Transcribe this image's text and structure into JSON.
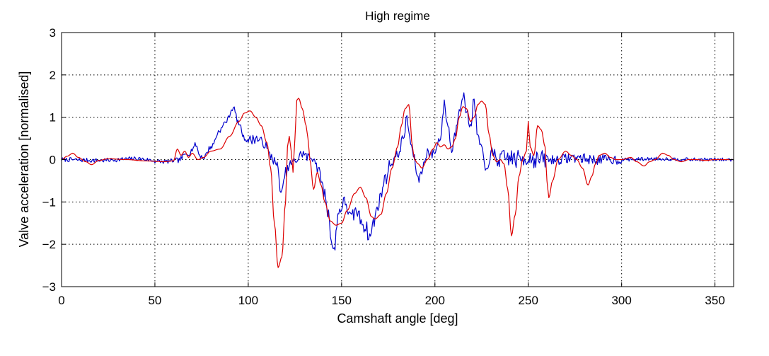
{
  "chart_data": {
    "type": "line",
    "title": "High regime",
    "xlabel": "Camshaft angle [deg]",
    "ylabel": "Valve acceleration [normalised]",
    "xlim": [
      0,
      360
    ],
    "ylim": [
      -3,
      3
    ],
    "grid": true,
    "legend": "none",
    "x_ticks": [
      0,
      50,
      100,
      150,
      200,
      250,
      300,
      350
    ],
    "y_ticks": [
      -3,
      -2,
      -1,
      0,
      1,
      2,
      3
    ],
    "x_tick_labels": [
      "0",
      "50",
      "100",
      "150",
      "200",
      "250",
      "300",
      "350"
    ],
    "y_tick_labels": [
      "−3",
      "−2",
      "−1",
      "0",
      "1",
      "2",
      "3"
    ],
    "series": [
      {
        "color": "#0000cc",
        "noise": {
          "seed": 7,
          "step": 0.5,
          "bands": [
            [
              0,
              60,
              0.05
            ],
            [
              60,
              100,
              0.06
            ],
            [
              100,
              140,
              0.12
            ],
            [
              140,
              175,
              0.18
            ],
            [
              175,
              230,
              0.12
            ],
            [
              230,
              260,
              0.22
            ],
            [
              260,
              300,
              0.12
            ],
            [
              300,
              360,
              0.04
            ]
          ]
        },
        "points": [
          [
            0,
            0.0
          ],
          [
            20,
            -0.02
          ],
          [
            40,
            0.02
          ],
          [
            55,
            -0.05
          ],
          [
            62,
            -0.02
          ],
          [
            68,
            0.15
          ],
          [
            72,
            0.35
          ],
          [
            74,
            0.1
          ],
          [
            76,
            0.05
          ],
          [
            80,
            0.3
          ],
          [
            85,
            0.7
          ],
          [
            88,
            0.9
          ],
          [
            92,
            1.22
          ],
          [
            95,
            0.85
          ],
          [
            98,
            0.5
          ],
          [
            100,
            0.45
          ],
          [
            104,
            0.5
          ],
          [
            108,
            0.4
          ],
          [
            112,
            0.1
          ],
          [
            115,
            -0.1
          ],
          [
            118,
            -0.8
          ],
          [
            120,
            -0.3
          ],
          [
            123,
            -0.1
          ],
          [
            126,
            0.0
          ],
          [
            129,
            0.15
          ],
          [
            132,
            0.05
          ],
          [
            135,
            0.05
          ],
          [
            138,
            -0.3
          ],
          [
            141,
            -0.8
          ],
          [
            143,
            -1.3
          ],
          [
            145,
            -2.0
          ],
          [
            146,
            -2.2
          ],
          [
            148,
            -1.3
          ],
          [
            150,
            -1.1
          ],
          [
            152,
            -1.0
          ],
          [
            155,
            -1.4
          ],
          [
            158,
            -1.2
          ],
          [
            160,
            -1.4
          ],
          [
            163,
            -1.6
          ],
          [
            165,
            -1.85
          ],
          [
            167,
            -1.5
          ],
          [
            170,
            -1.0
          ],
          [
            173,
            -0.5
          ],
          [
            176,
            -0.1
          ],
          [
            180,
            0.1
          ],
          [
            183,
            0.5
          ],
          [
            185,
            0.95
          ],
          [
            187,
            0.4
          ],
          [
            189,
            0.0
          ],
          [
            191,
            -0.5
          ],
          [
            193,
            -0.25
          ],
          [
            196,
            0.2
          ],
          [
            198,
            0.1
          ],
          [
            200,
            0.2
          ],
          [
            203,
            0.55
          ],
          [
            205,
            1.3
          ],
          [
            207,
            0.8
          ],
          [
            209,
            0.2
          ],
          [
            211,
            0.65
          ],
          [
            213,
            1.2
          ],
          [
            215,
            1.55
          ],
          [
            217,
            1.1
          ],
          [
            219,
            0.8
          ],
          [
            221,
            1.4
          ],
          [
            223,
            0.5
          ],
          [
            225,
            0.3
          ],
          [
            227,
            -0.3
          ],
          [
            230,
            0.1
          ],
          [
            235,
            0.0
          ],
          [
            240,
            0.05
          ],
          [
            244,
            0.0
          ],
          [
            250,
            0.05
          ],
          [
            255,
            0.0
          ],
          [
            265,
            0.0
          ],
          [
            275,
            0.05
          ],
          [
            285,
            0.0
          ],
          [
            300,
            0.0
          ],
          [
            320,
            0.02
          ],
          [
            340,
            0.0
          ],
          [
            360,
            0.0
          ]
        ]
      },
      {
        "color": "#dd0000",
        "noise": {
          "seed": 3,
          "step": 0.5,
          "bands": [
            [
              0,
              360,
              0.0
            ]
          ]
        },
        "points": [
          [
            0,
            0.0
          ],
          [
            3,
            0.08
          ],
          [
            6,
            0.15
          ],
          [
            9,
            0.05
          ],
          [
            13,
            -0.05
          ],
          [
            16,
            -0.12
          ],
          [
            20,
            -0.02
          ],
          [
            25,
            0.02
          ],
          [
            35,
            0.0
          ],
          [
            45,
            -0.03
          ],
          [
            55,
            -0.05
          ],
          [
            60,
            -0.03
          ],
          [
            62,
            0.25
          ],
          [
            64,
            0.1
          ],
          [
            66,
            0.2
          ],
          [
            68,
            0.05
          ],
          [
            70,
            0.15
          ],
          [
            73,
            0.0
          ],
          [
            76,
            0.05
          ],
          [
            80,
            0.2
          ],
          [
            85,
            0.25
          ],
          [
            90,
            0.55
          ],
          [
            95,
            0.9
          ],
          [
            98,
            1.1
          ],
          [
            101,
            1.15
          ],
          [
            104,
            1.0
          ],
          [
            107,
            0.8
          ],
          [
            110,
            0.4
          ],
          [
            112,
            -0.2
          ],
          [
            114,
            -1.5
          ],
          [
            116,
            -2.55
          ],
          [
            118,
            -2.3
          ],
          [
            120,
            -1.0
          ],
          [
            121,
            0.3
          ],
          [
            122,
            0.55
          ],
          [
            123,
            0.2
          ],
          [
            124,
            -0.3
          ],
          [
            125,
            0.5
          ],
          [
            126,
            1.4
          ],
          [
            127,
            1.45
          ],
          [
            129,
            1.2
          ],
          [
            131,
            0.8
          ],
          [
            132,
            0.5
          ],
          [
            133,
            0.0
          ],
          [
            135,
            -0.7
          ],
          [
            137,
            -0.3
          ],
          [
            139,
            -0.6
          ],
          [
            141,
            -1.0
          ],
          [
            144,
            -1.45
          ],
          [
            147,
            -1.55
          ],
          [
            150,
            -1.5
          ],
          [
            153,
            -1.2
          ],
          [
            157,
            -0.8
          ],
          [
            160,
            -0.65
          ],
          [
            163,
            -0.9
          ],
          [
            166,
            -1.35
          ],
          [
            168,
            -1.4
          ],
          [
            171,
            -1.3
          ],
          [
            174,
            -0.8
          ],
          [
            177,
            -0.2
          ],
          [
            180,
            0.3
          ],
          [
            182,
            0.8
          ],
          [
            184,
            1.2
          ],
          [
            186,
            1.3
          ],
          [
            188,
            0.3
          ],
          [
            189,
            0.0
          ],
          [
            191,
            -0.1
          ],
          [
            193,
            -0.2
          ],
          [
            196,
            0.0
          ],
          [
            199,
            0.25
          ],
          [
            201,
            0.4
          ],
          [
            203,
            0.3
          ],
          [
            205,
            0.35
          ],
          [
            207,
            0.25
          ],
          [
            209,
            0.3
          ],
          [
            211,
            0.5
          ],
          [
            213,
            1.0
          ],
          [
            215,
            1.25
          ],
          [
            217,
            1.2
          ],
          [
            219,
            0.9
          ],
          [
            221,
            1.0
          ],
          [
            223,
            1.3
          ],
          [
            225,
            1.38
          ],
          [
            227,
            1.3
          ],
          [
            229,
            0.6
          ],
          [
            231,
            0.1
          ],
          [
            233,
            -0.05
          ],
          [
            235,
            0.0
          ],
          [
            237,
            -0.1
          ],
          [
            239,
            -0.7
          ],
          [
            241,
            -1.8
          ],
          [
            243,
            -1.3
          ],
          [
            245,
            -0.4
          ],
          [
            247,
            0.0
          ],
          [
            249,
            0.2
          ],
          [
            250,
            0.9
          ],
          [
            251,
            0.3
          ],
          [
            253,
            0.1
          ],
          [
            255,
            0.8
          ],
          [
            257,
            0.7
          ],
          [
            259,
            0.3
          ],
          [
            260,
            -0.5
          ],
          [
            261,
            -0.9
          ],
          [
            263,
            -0.5
          ],
          [
            266,
            0.0
          ],
          [
            270,
            0.2
          ],
          [
            273,
            0.1
          ],
          [
            276,
            0.0
          ],
          [
            279,
            -0.2
          ],
          [
            282,
            -0.6
          ],
          [
            284,
            -0.4
          ],
          [
            286,
            -0.1
          ],
          [
            288,
            0.1
          ],
          [
            291,
            0.15
          ],
          [
            294,
            0.05
          ],
          [
            297,
            0.0
          ],
          [
            300,
            0.0
          ],
          [
            305,
            0.05
          ],
          [
            308,
            -0.05
          ],
          [
            312,
            -0.15
          ],
          [
            315,
            -0.05
          ],
          [
            318,
            0.0
          ],
          [
            322,
            0.15
          ],
          [
            325,
            0.1
          ],
          [
            328,
            0.0
          ],
          [
            332,
            -0.05
          ],
          [
            336,
            0.0
          ],
          [
            340,
            0.0
          ],
          [
            345,
            -0.02
          ],
          [
            350,
            0.0
          ],
          [
            360,
            0.0
          ]
        ]
      }
    ]
  }
}
